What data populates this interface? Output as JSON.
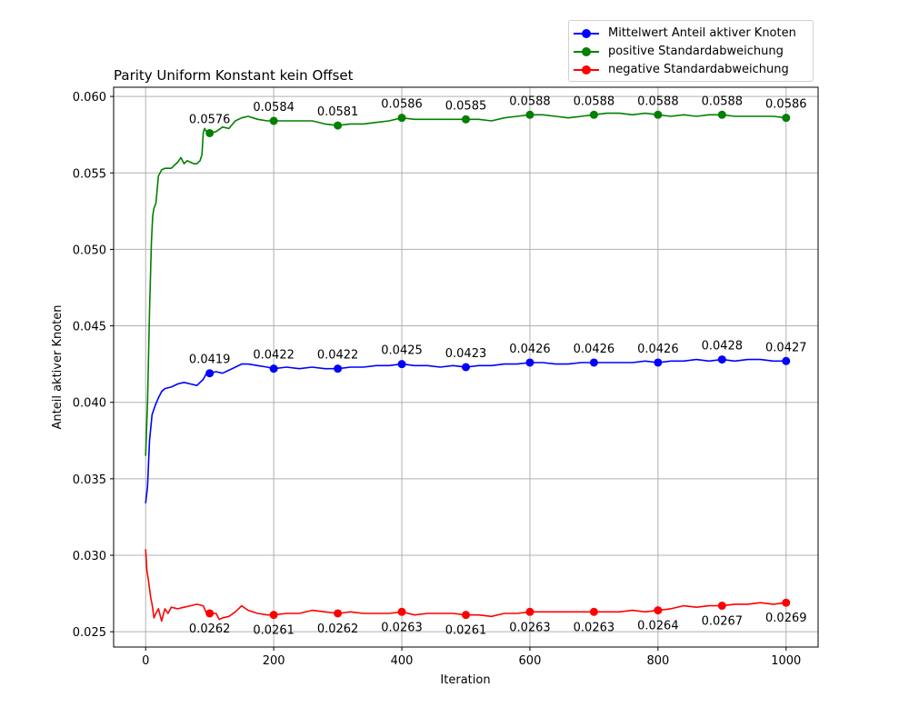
{
  "chart_data": {
    "type": "line",
    "title": "Parity Uniform Konstant kein Offset",
    "xlabel": "Iteration",
    "ylabel": "Anteil aktiver Knoten",
    "xlim": [
      -50,
      1050
    ],
    "ylim": [
      0.024,
      0.0606
    ],
    "xticks": [
      0,
      200,
      400,
      600,
      800,
      1000
    ],
    "yticks": [
      0.025,
      0.03,
      0.035,
      0.04,
      0.045,
      0.05,
      0.055,
      0.06
    ],
    "ytick_labels": [
      "0.025",
      "0.030",
      "0.035",
      "0.040",
      "0.045",
      "0.050",
      "0.055",
      "0.060"
    ],
    "grid": true,
    "legend_position": "top-right, above plot",
    "marker_x": [
      100,
      200,
      300,
      400,
      500,
      600,
      700,
      800,
      900,
      1000
    ],
    "series": [
      {
        "name": "Mittelwert Anteil aktiver Knoten",
        "color": "#0000ff",
        "label_position": "above",
        "marker_values": [
          0.0419,
          0.0422,
          0.0422,
          0.0425,
          0.0423,
          0.0426,
          0.0426,
          0.0426,
          0.0428,
          0.0427
        ],
        "marker_labels": [
          "0.0419",
          "0.0422",
          "0.0422",
          "0.0425",
          "0.0423",
          "0.0426",
          "0.0426",
          "0.0426",
          "0.0428",
          "0.0427"
        ],
        "x": [
          0,
          3,
          6,
          10,
          15,
          20,
          25,
          30,
          40,
          50,
          60,
          70,
          80,
          85,
          90,
          95,
          100,
          110,
          120,
          130,
          140,
          150,
          160,
          175,
          190,
          200,
          220,
          240,
          260,
          280,
          300,
          320,
          340,
          360,
          380,
          400,
          420,
          440,
          460,
          480,
          500,
          520,
          540,
          560,
          580,
          600,
          620,
          640,
          660,
          680,
          700,
          720,
          740,
          760,
          780,
          800,
          820,
          840,
          860,
          880,
          900,
          920,
          940,
          960,
          980,
          1000
        ],
        "y": [
          0.0334,
          0.0345,
          0.0375,
          0.0392,
          0.0398,
          0.0403,
          0.0407,
          0.0409,
          0.041,
          0.0412,
          0.0413,
          0.0412,
          0.0411,
          0.0413,
          0.0415,
          0.0419,
          0.0419,
          0.042,
          0.0419,
          0.0421,
          0.0423,
          0.0425,
          0.0425,
          0.0424,
          0.0423,
          0.0422,
          0.0423,
          0.0422,
          0.0423,
          0.0422,
          0.0422,
          0.0423,
          0.0423,
          0.0424,
          0.0424,
          0.0425,
          0.0424,
          0.0424,
          0.0423,
          0.0424,
          0.0423,
          0.0424,
          0.0424,
          0.0425,
          0.0425,
          0.0426,
          0.0426,
          0.0425,
          0.0425,
          0.0426,
          0.0426,
          0.0426,
          0.0426,
          0.0426,
          0.0427,
          0.0426,
          0.0427,
          0.0427,
          0.0428,
          0.0427,
          0.0428,
          0.0427,
          0.0428,
          0.0428,
          0.0427,
          0.0427
        ]
      },
      {
        "name": "positive Standardabweichung",
        "color": "#008000",
        "label_position": "above",
        "marker_values": [
          0.0576,
          0.0584,
          0.0581,
          0.0586,
          0.0585,
          0.0588,
          0.0588,
          0.0588,
          0.0588,
          0.0586
        ],
        "marker_labels": [
          "0.0576",
          "0.0584",
          "0.0581",
          "0.0586",
          "0.0585",
          "0.0588",
          "0.0588",
          "0.0588",
          "0.0588",
          "0.0586"
        ],
        "x": [
          0,
          3,
          6,
          9,
          11,
          13,
          16,
          20,
          25,
          30,
          40,
          50,
          55,
          60,
          65,
          70,
          75,
          80,
          85,
          88,
          90,
          92,
          95,
          100,
          110,
          120,
          130,
          140,
          150,
          160,
          175,
          190,
          200,
          220,
          240,
          260,
          280,
          300,
          320,
          340,
          360,
          380,
          400,
          420,
          440,
          460,
          480,
          500,
          520,
          540,
          560,
          580,
          600,
          620,
          640,
          660,
          680,
          700,
          720,
          740,
          760,
          780,
          800,
          820,
          840,
          860,
          880,
          900,
          920,
          940,
          960,
          980,
          1000
        ],
        "y": [
          0.0365,
          0.04,
          0.046,
          0.0505,
          0.0522,
          0.0527,
          0.053,
          0.0548,
          0.0552,
          0.0553,
          0.0553,
          0.0557,
          0.056,
          0.0556,
          0.0558,
          0.0557,
          0.0556,
          0.0556,
          0.0558,
          0.0562,
          0.0576,
          0.0579,
          0.0577,
          0.0576,
          0.0577,
          0.058,
          0.0579,
          0.0584,
          0.0586,
          0.0587,
          0.0585,
          0.0584,
          0.0584,
          0.0584,
          0.0584,
          0.0584,
          0.0582,
          0.0581,
          0.0582,
          0.0582,
          0.0583,
          0.0584,
          0.0586,
          0.0585,
          0.0585,
          0.0585,
          0.0585,
          0.0585,
          0.0585,
          0.0584,
          0.0586,
          0.0587,
          0.0588,
          0.0588,
          0.0587,
          0.0586,
          0.0587,
          0.0588,
          0.0589,
          0.0589,
          0.0588,
          0.0589,
          0.0588,
          0.0587,
          0.0588,
          0.0587,
          0.0588,
          0.0588,
          0.0587,
          0.0587,
          0.0587,
          0.0587,
          0.0586
        ]
      },
      {
        "name": "negative Standardabweichung",
        "color": "#ff0000",
        "label_position": "below",
        "marker_values": [
          0.0262,
          0.0261,
          0.0262,
          0.0263,
          0.0261,
          0.0263,
          0.0263,
          0.0264,
          0.0267,
          0.0269
        ],
        "marker_labels": [
          "0.0262",
          "0.0261",
          "0.0262",
          "0.0263",
          "0.0261",
          "0.0263",
          "0.0263",
          "0.0264",
          "0.0267",
          "0.0269"
        ],
        "x": [
          0,
          2,
          4,
          6,
          8,
          10,
          13,
          16,
          20,
          25,
          30,
          35,
          40,
          50,
          60,
          70,
          80,
          90,
          95,
          100,
          110,
          115,
          120,
          130,
          140,
          150,
          160,
          175,
          190,
          200,
          220,
          240,
          260,
          280,
          300,
          320,
          340,
          360,
          380,
          400,
          420,
          440,
          460,
          480,
          500,
          520,
          540,
          560,
          580,
          600,
          620,
          640,
          660,
          680,
          700,
          720,
          740,
          760,
          780,
          800,
          820,
          840,
          860,
          880,
          900,
          920,
          940,
          960,
          980,
          1000
        ],
        "y": [
          0.0304,
          0.029,
          0.0285,
          0.0278,
          0.0272,
          0.0268,
          0.0259,
          0.0262,
          0.0265,
          0.0257,
          0.0265,
          0.0262,
          0.0266,
          0.0265,
          0.0266,
          0.0267,
          0.0268,
          0.0267,
          0.0262,
          0.0262,
          0.0262,
          0.0258,
          0.0259,
          0.026,
          0.0263,
          0.0267,
          0.0264,
          0.0262,
          0.0261,
          0.0261,
          0.0262,
          0.0262,
          0.0264,
          0.0263,
          0.0262,
          0.0263,
          0.0262,
          0.0262,
          0.0262,
          0.0263,
          0.0261,
          0.0262,
          0.0262,
          0.0262,
          0.0261,
          0.0261,
          0.026,
          0.0262,
          0.0262,
          0.0263,
          0.0263,
          0.0263,
          0.0263,
          0.0263,
          0.0263,
          0.0263,
          0.0263,
          0.0264,
          0.0263,
          0.0264,
          0.0265,
          0.0267,
          0.0266,
          0.0267,
          0.0267,
          0.0268,
          0.0268,
          0.0269,
          0.0268,
          0.0269
        ]
      }
    ]
  }
}
